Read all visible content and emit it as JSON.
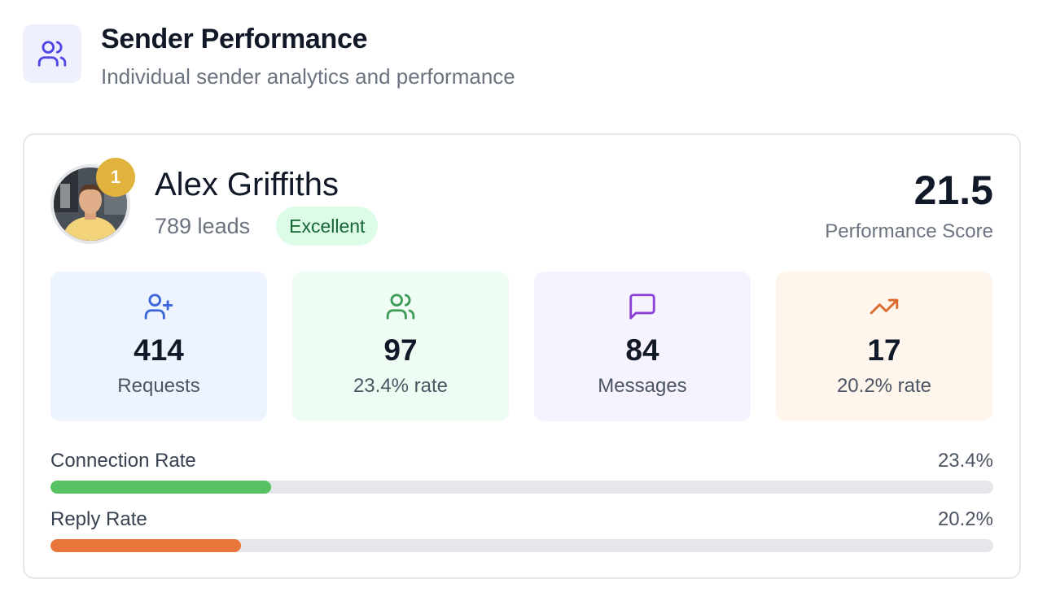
{
  "header": {
    "icon": "users-icon",
    "title": "Sender Performance",
    "subtitle": "Individual sender analytics and performance"
  },
  "sender": {
    "rank": "1",
    "name": "Alex Griffiths",
    "leads": "789 leads",
    "status": "Excellent",
    "score": "21.5",
    "score_label": "Performance Score"
  },
  "stats": [
    {
      "icon": "user-plus-icon",
      "value": "414",
      "label": "Requests",
      "bg": "#eef4fe",
      "color": "#3b66d9"
    },
    {
      "icon": "users-icon",
      "value": "97",
      "label": "23.4% rate",
      "bg": "#effcf3",
      "color": "#3e9c59"
    },
    {
      "icon": "message-square-icon",
      "value": "84",
      "label": "Messages",
      "bg": "#f5f3fe",
      "color": "#8a3fd6"
    },
    {
      "icon": "trending-up-icon",
      "value": "17",
      "label": "20.2% rate",
      "bg": "#fef6ec",
      "color": "#dc6a2c"
    }
  ],
  "rates": [
    {
      "label": "Connection Rate",
      "value_text": "23.4%",
      "percent": 23.4,
      "color": "#56c264"
    },
    {
      "label": "Reply Rate",
      "value_text": "20.2%",
      "percent": 20.2,
      "color": "#e8763a"
    }
  ],
  "colors": {
    "accent": "#4f46e5",
    "badge_gold": "#e2b33c"
  }
}
